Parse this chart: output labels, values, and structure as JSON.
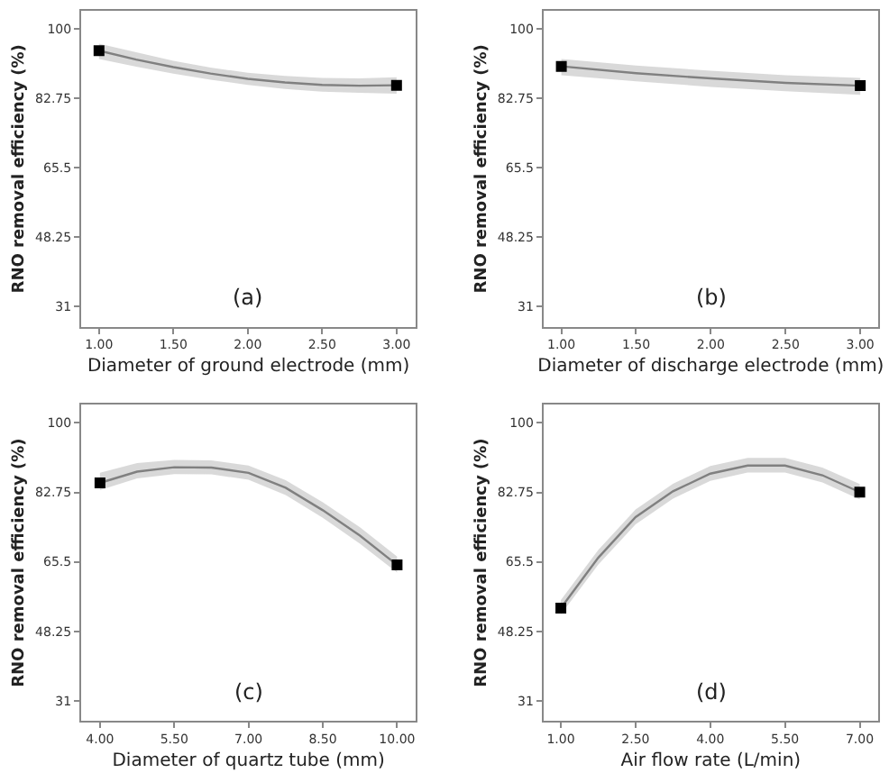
{
  "chart_data": [
    {
      "type": "line",
      "xlabel": "Diameter of ground electrode (mm)",
      "ylabel": "RNO removal efficiency (%)",
      "annotations": [
        "(a)"
      ],
      "xlim": [
        0.88,
        3.13
      ],
      "xticks": [
        {
          "value": 1,
          "label": "1.00"
        },
        {
          "value": 1.5,
          "label": "1.50"
        },
        {
          "value": 2,
          "label": "2.00"
        },
        {
          "value": 2.5,
          "label": "2.50"
        },
        {
          "value": 3,
          "label": "3.00"
        }
      ],
      "ylim": [
        26,
        104.5
      ],
      "yticks": [
        31,
        48.25,
        65.5,
        82.75,
        100
      ],
      "series": [
        {
          "marker": "none",
          "color": "#808080",
          "x": [
            1,
            1.25,
            1.5,
            1.75,
            2,
            2.25,
            2.5,
            2.75,
            3
          ],
          "values": [
            94.6,
            92.4,
            90.5,
            88.9,
            87.6,
            86.7,
            86.1,
            85.9,
            86.0
          ],
          "lower": [
            92.5,
            90.6,
            88.9,
            87.4,
            86.1,
            85.1,
            84.4,
            84.1,
            83.9
          ],
          "upper": [
            96.3,
            94.2,
            92.1,
            90.4,
            89.1,
            88.3,
            87.8,
            87.7,
            88.0
          ]
        },
        {
          "type": "scatter",
          "marker": "square",
          "color": "#000000",
          "x": [
            1,
            3
          ],
          "values": [
            94.6,
            86.0
          ]
        }
      ]
    },
    {
      "type": "line",
      "xlabel": "Diameter of discharge electrode (mm)",
      "ylabel": "RNO removal efficiency (%)",
      "annotations": [
        "(b)"
      ],
      "xlim": [
        0.88,
        3.12
      ],
      "xticks": [
        {
          "value": 1,
          "label": "1.00"
        },
        {
          "value": 1.5,
          "label": "1.50"
        },
        {
          "value": 2,
          "label": "2.00"
        },
        {
          "value": 2.5,
          "label": "2.50"
        },
        {
          "value": 3,
          "label": "3.00"
        }
      ],
      "ylim": [
        26,
        104.5
      ],
      "yticks": [
        31,
        48.25,
        65.5,
        82.75,
        100
      ],
      "series": [
        {
          "marker": "none",
          "color": "#808080",
          "x": [
            1,
            1.5,
            2,
            2.5,
            3
          ],
          "values": [
            90.7,
            89.0,
            87.7,
            86.6,
            85.9
          ],
          "lower": [
            88.5,
            87.0,
            85.6,
            84.5,
            83.6
          ],
          "upper": [
            92.5,
            90.9,
            89.6,
            88.5,
            87.8
          ]
        },
        {
          "type": "scatter",
          "marker": "square",
          "color": "#000000",
          "x": [
            1,
            3
          ],
          "values": [
            90.7,
            85.9
          ]
        }
      ]
    },
    {
      "type": "line",
      "xlabel": "Diameter of quartz tube (mm)",
      "ylabel": "RNO removal efficiency (%)",
      "annotations": [
        "(c)"
      ],
      "xlim": [
        3.62,
        10.38
      ],
      "xticks": [
        {
          "value": 4,
          "label": "4.00"
        },
        {
          "value": 5.5,
          "label": "5.50"
        },
        {
          "value": 7,
          "label": "7.00"
        },
        {
          "value": 8.5,
          "label": "8.50"
        },
        {
          "value": 10,
          "label": "10.00"
        }
      ],
      "ylim": [
        26,
        104.5
      ],
      "yticks": [
        31,
        48.25,
        65.5,
        82.75,
        100
      ],
      "series": [
        {
          "marker": "none",
          "color": "#808080",
          "x": [
            4,
            4.75,
            5.5,
            6.25,
            7,
            7.75,
            8.5,
            9.25,
            10
          ],
          "values": [
            85.1,
            87.9,
            89.0,
            88.9,
            87.6,
            83.9,
            78.3,
            72.0,
            64.7
          ],
          "lower": [
            83.3,
            86.2,
            87.3,
            87.2,
            85.9,
            82.1,
            76.4,
            70.0,
            62.8
          ],
          "upper": [
            87.6,
            90.0,
            90.8,
            90.7,
            89.4,
            85.8,
            80.3,
            74.1,
            66.8
          ]
        },
        {
          "type": "scatter",
          "marker": "square",
          "color": "#000000",
          "x": [
            4,
            10
          ],
          "values": [
            85.1,
            64.7
          ]
        }
      ]
    },
    {
      "type": "line",
      "xlabel": "Air flow rate (L/min)",
      "ylabel": "RNO removal efficiency (%)",
      "annotations": [
        "(d)"
      ],
      "xlim": [
        0.65,
        7.37
      ],
      "xticks": [
        {
          "value": 1,
          "label": "1.00"
        },
        {
          "value": 2.5,
          "label": "2.50"
        },
        {
          "value": 4,
          "label": "4.00"
        },
        {
          "value": 5.5,
          "label": "5.50"
        },
        {
          "value": 7,
          "label": "7.00"
        }
      ],
      "ylim": [
        26,
        104.5
      ],
      "yticks": [
        31,
        48.25,
        65.5,
        82.75,
        100
      ],
      "series": [
        {
          "marker": "none",
          "color": "#808080",
          "x": [
            1,
            1.75,
            2.5,
            3.25,
            4,
            4.75,
            5.5,
            6.25,
            7
          ],
          "values": [
            54.0,
            66.5,
            76.6,
            83.0,
            87.4,
            89.4,
            89.4,
            87.0,
            82.8
          ],
          "lower": [
            52.4,
            64.8,
            74.8,
            81.2,
            85.6,
            87.7,
            87.7,
            85.2,
            81.0
          ],
          "upper": [
            56.0,
            68.4,
            78.5,
            84.9,
            89.3,
            91.3,
            91.3,
            88.9,
            84.8
          ]
        },
        {
          "type": "scatter",
          "marker": "square",
          "color": "#000000",
          "x": [
            1,
            7
          ],
          "values": [
            54.0,
            82.8
          ]
        }
      ]
    }
  ]
}
